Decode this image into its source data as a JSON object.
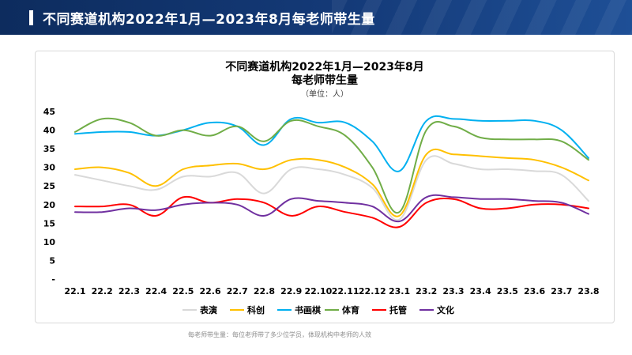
{
  "header": {
    "title": "不同赛道机构2022年1月—2023年8月每老师带生量"
  },
  "chart_data": {
    "type": "line",
    "title_line1": "不同赛道机构2022年1月—2023年8月",
    "title_line2": "每老师带生量",
    "subtitle": "（单位：人）",
    "categories": [
      "22.1",
      "22.2",
      "22.3",
      "22.4",
      "22.5",
      "22.6",
      "22.7",
      "22.8",
      "22.9",
      "22.10",
      "22.11",
      "22.12",
      "23.1",
      "23.2",
      "23.3",
      "23.4",
      "23.5",
      "23.6",
      "23.7",
      "23.8"
    ],
    "y_tick_labels": [
      "-",
      "5",
      "10",
      "15",
      "20",
      "25",
      "30",
      "35",
      "40",
      "45"
    ],
    "ylim": [
      0,
      45
    ],
    "series": [
      {
        "name": "表演",
        "color": "#d9d9d9",
        "values": [
          28,
          26.5,
          25,
          24,
          27.5,
          27.5,
          28.5,
          23,
          29.5,
          29.5,
          28,
          24.5,
          16,
          32,
          31,
          29.5,
          29.5,
          29,
          28,
          21
        ]
      },
      {
        "name": "科创",
        "color": "#ffc000",
        "values": [
          29.5,
          30,
          28.5,
          25,
          29.5,
          30.5,
          31,
          29.5,
          32,
          32,
          30,
          25.5,
          17,
          33.5,
          33.5,
          33,
          32.5,
          32,
          30,
          26.5
        ]
      },
      {
        "name": "书画棋",
        "color": "#00b0f0",
        "values": [
          39,
          39.5,
          39.5,
          38.5,
          40,
          42,
          41,
          36,
          43,
          42,
          42,
          37,
          29,
          42.5,
          43,
          42.5,
          42.5,
          42.5,
          40,
          32.5
        ]
      },
      {
        "name": "体育",
        "color": "#70ad47",
        "values": [
          39.5,
          43,
          42,
          38.5,
          40,
          38.5,
          41,
          37,
          42.5,
          41,
          38.5,
          30,
          18,
          40,
          41,
          38,
          37.5,
          37.5,
          37,
          32
        ]
      },
      {
        "name": "托管",
        "color": "#ff0000",
        "values": [
          19.5,
          19.5,
          20,
          17,
          22,
          20.5,
          21.5,
          20.5,
          17,
          19.5,
          18,
          16.5,
          14,
          20.5,
          21.5,
          19,
          19,
          20,
          20,
          19
        ]
      },
      {
        "name": "文化",
        "color": "#7030a0",
        "values": [
          18,
          18,
          19,
          18.5,
          20,
          20.5,
          20,
          17,
          21.5,
          21,
          20.5,
          19.5,
          15.5,
          22,
          22,
          21.5,
          21.5,
          21,
          20.5,
          17.5
        ]
      }
    ]
  },
  "footnote": "每老师带生量：每位老师带了多少位学员，体现机构中老师的人效"
}
